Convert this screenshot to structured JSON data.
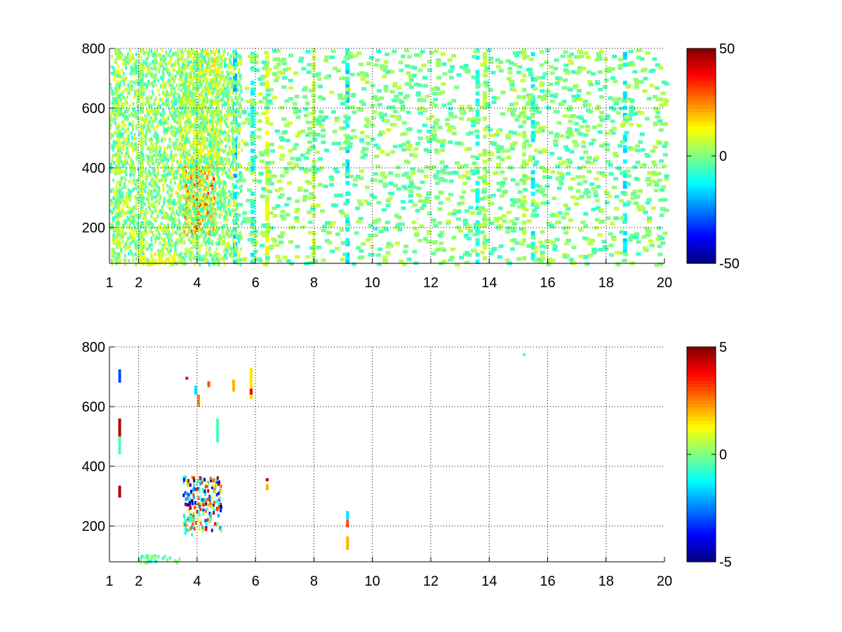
{
  "chart_data": [
    {
      "type": "heatmap",
      "title": "",
      "xlabel": "",
      "ylabel": "",
      "xlim": [
        1,
        20
      ],
      "ylim": [
        80,
        800
      ],
      "xticks": [
        1,
        2,
        4,
        6,
        8,
        10,
        12,
        14,
        16,
        18,
        20
      ],
      "yticks": [
        200,
        400,
        600,
        800
      ],
      "grid": true,
      "colormap": "jet",
      "clim": [
        -50,
        50
      ],
      "colorbar_ticks": [
        -50,
        0,
        50
      ],
      "background": "#ffffff",
      "stripes": [
        {
          "x": 1.3,
          "ymin": 80,
          "ymax": 800,
          "value": 10
        },
        {
          "x": 2.1,
          "ymin": 80,
          "ymax": 800,
          "value": 8
        },
        {
          "x": 4.0,
          "ymin": 80,
          "ymax": 800,
          "value": 3
        },
        {
          "x": 5.3,
          "ymin": 80,
          "ymax": 800,
          "value": -18
        },
        {
          "x": 5.9,
          "ymin": 80,
          "ymax": 800,
          "value": -12
        },
        {
          "x": 6.4,
          "ymin": 80,
          "ymax": 800,
          "value": 10
        },
        {
          "x": 8.0,
          "ymin": 80,
          "ymax": 800,
          "value": 5
        },
        {
          "x": 9.15,
          "ymin": 80,
          "ymax": 800,
          "value": -15
        },
        {
          "x": 13.6,
          "ymin": 80,
          "ymax": 800,
          "value": -10
        },
        {
          "x": 13.85,
          "ymin": 80,
          "ymax": 800,
          "value": 6
        },
        {
          "x": 15.2,
          "ymin": 80,
          "ymax": 800,
          "value": 4
        },
        {
          "x": 15.5,
          "ymin": 80,
          "ymax": 800,
          "value": -12
        },
        {
          "x": 18.65,
          "ymin": 80,
          "ymax": 800,
          "value": -14
        }
      ],
      "clusters": [
        {
          "xmin": 3.5,
          "xmax": 4.6,
          "ymin": 180,
          "ymax": 420,
          "vmin": 10,
          "vmax": 35
        },
        {
          "xmin": 3.3,
          "xmax": 4.8,
          "ymin": 400,
          "ymax": 800,
          "vmin": 3,
          "vmax": 18
        },
        {
          "xmin": 1.0,
          "xmax": 5.5,
          "ymin": 80,
          "ymax": 800,
          "vmin": -10,
          "vmax": 12
        },
        {
          "xmin": 2.0,
          "xmax": 3.2,
          "ymin": 80,
          "ymax": 120,
          "vmin": 8,
          "vmax": 15
        },
        {
          "xmin": 5.5,
          "xmax": 20.0,
          "ymin": 80,
          "ymax": 800,
          "vmin": -8,
          "vmax": 8
        }
      ]
    },
    {
      "type": "heatmap",
      "title": "",
      "xlabel": "",
      "ylabel": "",
      "xlim": [
        1,
        20
      ],
      "ylim": [
        80,
        800
      ],
      "xticks": [
        1,
        2,
        4,
        6,
        8,
        10,
        12,
        14,
        16,
        18,
        20
      ],
      "yticks": [
        200,
        400,
        600,
        800
      ],
      "grid": true,
      "colormap": "jet",
      "clim": [
        -5,
        5
      ],
      "colorbar_ticks": [
        -5,
        0,
        5
      ],
      "background": "#ffffff",
      "segments": [
        {
          "x": 1.35,
          "ymin": 680,
          "ymax": 725,
          "value": -3
        },
        {
          "x": 1.35,
          "ymin": 500,
          "ymax": 560,
          "value": 4.5
        },
        {
          "x": 1.35,
          "ymin": 440,
          "ymax": 500,
          "value": -0.5
        },
        {
          "x": 1.35,
          "ymin": 295,
          "ymax": 335,
          "value": 4.5
        },
        {
          "x": 3.65,
          "ymin": 690,
          "ymax": 700,
          "value": 4
        },
        {
          "x": 3.95,
          "ymin": 640,
          "ymax": 670,
          "value": -1.5
        },
        {
          "x": 4.05,
          "ymin": 600,
          "ymax": 640,
          "value": 2.5
        },
        {
          "x": 4.4,
          "ymin": 665,
          "ymax": 685,
          "value": 3
        },
        {
          "x": 5.25,
          "ymin": 650,
          "ymax": 690,
          "value": 2
        },
        {
          "x": 5.85,
          "ymin": 625,
          "ymax": 730,
          "value": 1.5
        },
        {
          "x": 5.85,
          "ymin": 640,
          "ymax": 660,
          "value": 4
        },
        {
          "x": 4.7,
          "ymin": 480,
          "ymax": 560,
          "value": -0.5
        },
        {
          "x": 6.4,
          "ymin": 350,
          "ymax": 360,
          "value": 4.5
        },
        {
          "x": 6.4,
          "ymin": 320,
          "ymax": 340,
          "value": 2
        },
        {
          "x": 9.15,
          "ymin": 220,
          "ymax": 250,
          "value": -1.5
        },
        {
          "x": 9.15,
          "ymin": 195,
          "ymax": 220,
          "value": 3
        },
        {
          "x": 9.15,
          "ymin": 120,
          "ymax": 165,
          "value": 2
        },
        {
          "x": 15.2,
          "ymin": 770,
          "ymax": 778,
          "value": -1
        }
      ],
      "clusters": [
        {
          "xmin": 3.5,
          "xmax": 4.8,
          "ymin": 190,
          "ymax": 370,
          "vmin": -5,
          "vmax": 5
        },
        {
          "xmin": 3.5,
          "xmax": 3.8,
          "ymin": 170,
          "ymax": 240,
          "vmin": -2,
          "vmax": 0
        },
        {
          "xmin": 2.0,
          "xmax": 3.4,
          "ymin": 82,
          "ymax": 110,
          "vmin": -1,
          "vmax": 0.5
        }
      ]
    }
  ]
}
